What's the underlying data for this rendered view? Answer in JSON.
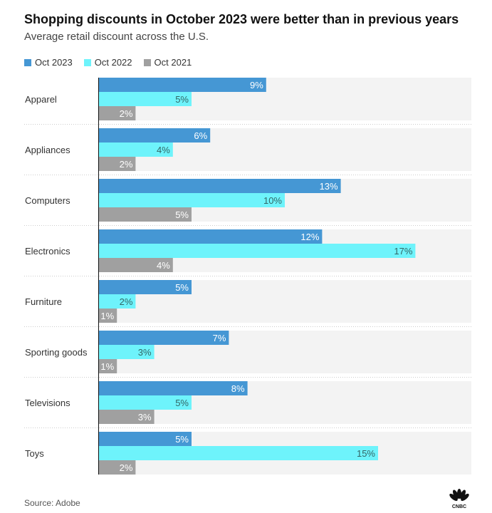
{
  "chart_data": {
    "type": "bar",
    "orientation": "horizontal",
    "title": "Shopping discounts in October 2023 were better than in previous years",
    "subtitle": "Average retail discount across the U.S.",
    "categories": [
      "Apparel",
      "Appliances",
      "Computers",
      "Electronics",
      "Furniture",
      "Sporting goods",
      "Televisions",
      "Toys"
    ],
    "series": [
      {
        "name": "Oct 2023",
        "color": "#4597d4",
        "label_color": "#ffffff",
        "values": [
          9,
          6,
          13,
          12,
          5,
          7,
          8,
          5
        ]
      },
      {
        "name": "Oct 2022",
        "color": "#6ef3fb",
        "label_color": "#336666",
        "values": [
          5,
          4,
          10,
          17,
          2,
          3,
          5,
          15
        ]
      },
      {
        "name": "Oct 2021",
        "color": "#a0a0a0",
        "label_color": "#ffffff",
        "values": [
          2,
          2,
          5,
          4,
          1,
          1,
          3,
          2
        ]
      }
    ],
    "value_suffix": "%",
    "xlim": [
      0,
      20
    ],
    "legend_position": "top-left",
    "source": "Source: Adobe"
  },
  "brand": {
    "logo": "CNBC"
  }
}
